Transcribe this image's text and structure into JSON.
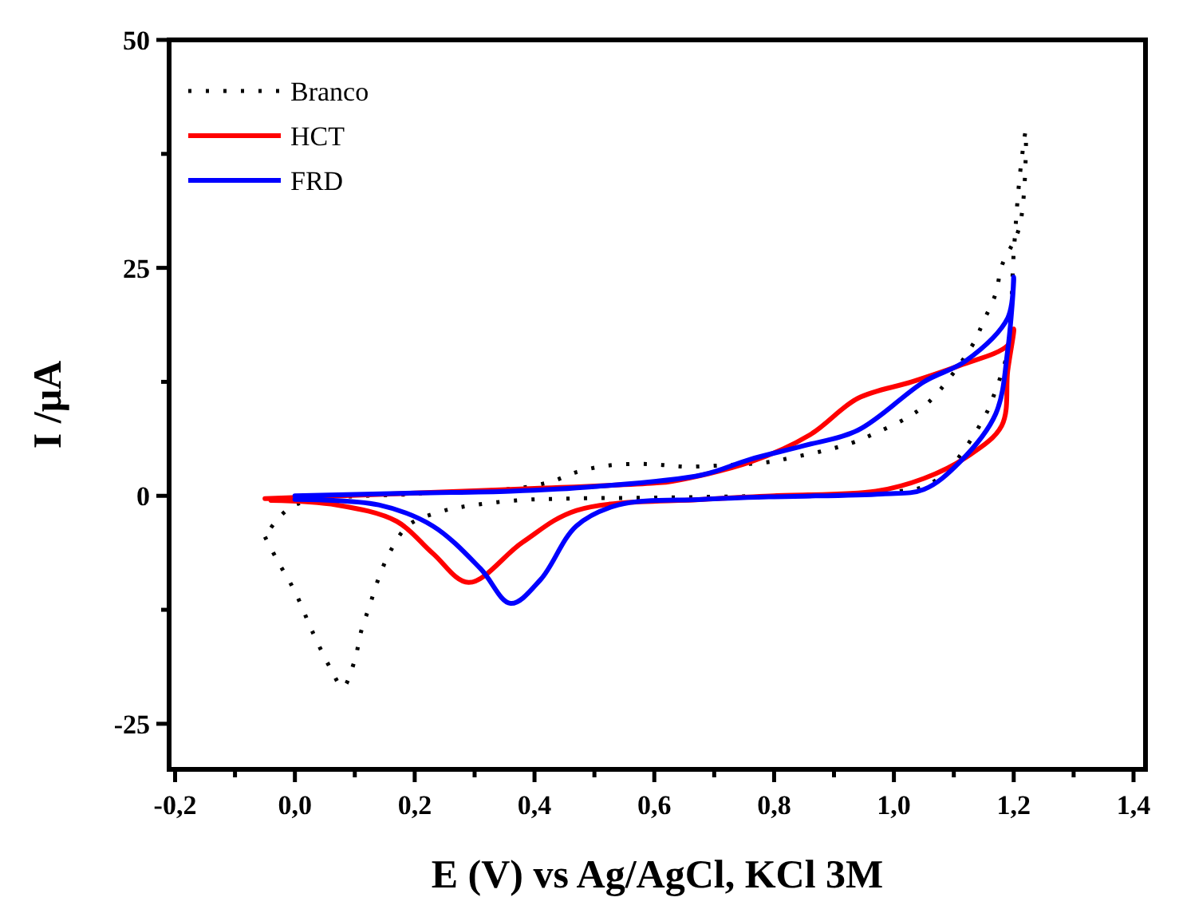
{
  "chart_data": {
    "type": "line",
    "xlabel": "E (V) vs Ag/AgCl, KCl 3M",
    "ylabel": "I /μA",
    "xlim": [
      -0.21,
      1.42
    ],
    "ylim": [
      -30,
      50
    ],
    "xticks": [
      {
        "value": -0.2,
        "label": "-0,2"
      },
      {
        "value": -0.1,
        "label": null
      },
      {
        "value": 0,
        "label": "0,0"
      },
      {
        "value": 0.1,
        "label": null
      },
      {
        "value": 0.2,
        "label": "0,2"
      },
      {
        "value": 0.3,
        "label": null
      },
      {
        "value": 0.4,
        "label": "0,4"
      },
      {
        "value": 0.5,
        "label": null
      },
      {
        "value": 0.6,
        "label": "0,6"
      },
      {
        "value": 0.7,
        "label": null
      },
      {
        "value": 0.8,
        "label": "0,8"
      },
      {
        "value": 0.9,
        "label": null
      },
      {
        "value": 1.0,
        "label": "1,0"
      },
      {
        "value": 1.1,
        "label": null
      },
      {
        "value": 1.2,
        "label": "1,2"
      },
      {
        "value": 1.3,
        "label": null
      },
      {
        "value": 1.4,
        "label": "1,4"
      }
    ],
    "yticks": [
      -25,
      {
        "value": -12.5,
        "label": null
      },
      0,
      {
        "value": 12.5,
        "label": null
      },
      25,
      {
        "value": 37.5,
        "label": null
      },
      50
    ],
    "legend": "top left",
    "grid": false,
    "marker": "none",
    "line_style": "solid",
    "series": [
      {
        "name": "Branco",
        "color": "#000000",
        "line_style": "dotted",
        "x": [
          -0.05,
          -0.03,
          0.0,
          0.03,
          0.06,
          0.08,
          0.1,
          0.11,
          0.125,
          0.14,
          0.16,
          0.19,
          0.24,
          0.28,
          0.37,
          0.46,
          0.6,
          0.8,
          0.95,
          1.01,
          1.05,
          1.09,
          1.15,
          1.17,
          1.19,
          1.2,
          1.21,
          1.22,
          1.21,
          1.18,
          1.17,
          1.15,
          1.13,
          1.06,
          1.02,
          0.97,
          0.93,
          0.88,
          0.83,
          0.79,
          0.7,
          0.65,
          0.61,
          0.57,
          0.52,
          0.47,
          0.43,
          0.39,
          0.35,
          0.2,
          0.0,
          -0.04
        ],
        "values": [
          -4.5,
          -7,
          -10.5,
          -15,
          -19,
          -21,
          -18,
          -15,
          -12,
          -9,
          -6,
          -3.2,
          -1.8,
          -1.2,
          -0.5,
          -0.3,
          -0.2,
          0,
          0.2,
          0.5,
          1,
          2.8,
          8.5,
          11.6,
          16,
          26.6,
          35,
          40,
          29.6,
          25.2,
          22.2,
          19.2,
          16.4,
          10.4,
          8.5,
          6.9,
          5.8,
          4.9,
          4.2,
          3.7,
          3.3,
          3.2,
          3.4,
          3.5,
          3.3,
          2.6,
          1.6,
          1.0,
          0.7,
          0.2,
          -1,
          -3.5
        ]
      },
      {
        "name": "HCT",
        "color": "#ff0000",
        "x": [
          -0.05,
          0.2,
          0.4,
          0.6,
          0.63,
          0.76,
          0.86,
          0.94,
          1.03,
          1.11,
          1.19,
          1.2,
          1.19,
          1.18,
          1.12,
          1.05,
          0.97,
          0.8,
          0.68,
          0.47,
          0.38,
          0.29,
          0.23,
          0.17,
          0.07,
          -0.04
        ],
        "values": [
          -0.3,
          0.3,
          0.8,
          1.4,
          1.6,
          3.7,
          6.7,
          10.7,
          12.5,
          14.3,
          16.5,
          18.3,
          13.7,
          7.7,
          4.2,
          1.9,
          0.5,
          0,
          -0.4,
          -1.6,
          -5.1,
          -9.5,
          -6.3,
          -2.8,
          -1,
          -0.5
        ]
      },
      {
        "name": "FRD",
        "color": "#0000ff",
        "x": [
          0.0,
          0.2,
          0.36,
          0.5,
          0.68,
          0.76,
          0.85,
          0.94,
          1.05,
          1.12,
          1.19,
          1.2,
          1.19,
          1.17,
          1.11,
          1.05,
          0.98,
          0.8,
          0.68,
          0.54,
          0.47,
          0.41,
          0.36,
          0.31,
          0.23,
          0.14,
          0.0
        ],
        "values": [
          0,
          0.3,
          0.5,
          1.0,
          2.3,
          4,
          5.5,
          7.2,
          12.5,
          14.8,
          19.5,
          24,
          16,
          9,
          3.7,
          0.7,
          0.2,
          -0.1,
          -0.4,
          -1,
          -3.3,
          -9.2,
          -11.8,
          -8,
          -3.3,
          -1,
          -0.4
        ]
      }
    ]
  }
}
